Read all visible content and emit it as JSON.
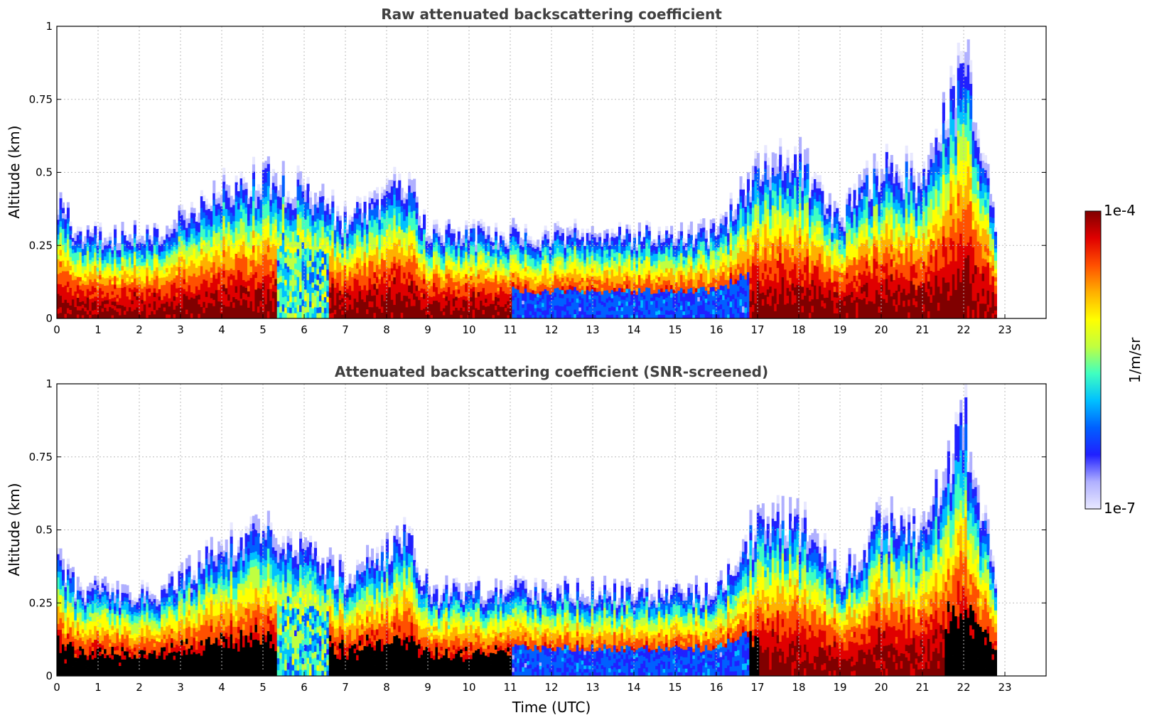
{
  "chart_data": [
    {
      "type": "heatmap",
      "title": "Raw attenuated backscattering coefficient",
      "xlabel": "",
      "ylabel": "Altitude (km)",
      "xlim": [
        0,
        24
      ],
      "ylim": [
        0,
        1
      ],
      "xticks": [
        "0",
        "1",
        "2",
        "3",
        "4",
        "5",
        "6",
        "7",
        "8",
        "9",
        "10",
        "11",
        "12",
        "13",
        "14",
        "15",
        "16",
        "17",
        "18",
        "19",
        "20",
        "21",
        "22",
        "23"
      ],
      "yticks": [
        "0",
        "0.25",
        "0.5",
        "0.75",
        "1"
      ],
      "ytick_values": [
        0,
        0.25,
        0.5,
        0.75,
        1
      ],
      "grid": true,
      "data_end_hour": 22.8,
      "layer_top_km": [
        [
          0,
          0.4
        ],
        [
          0.5,
          0.3
        ],
        [
          2.5,
          0.3
        ],
        [
          3,
          0.35
        ],
        [
          4,
          0.45
        ],
        [
          5,
          0.5
        ],
        [
          6,
          0.45
        ],
        [
          7,
          0.35
        ],
        [
          8.5,
          0.5
        ],
        [
          9,
          0.3
        ],
        [
          13,
          0.3
        ],
        [
          16,
          0.3
        ],
        [
          17,
          0.55
        ],
        [
          18,
          0.55
        ],
        [
          19,
          0.35
        ],
        [
          20,
          0.55
        ],
        [
          21,
          0.5
        ],
        [
          22,
          0.9
        ],
        [
          22.8,
          0.3
        ]
      ]
    },
    {
      "type": "heatmap",
      "title": "Attenuated backscattering coefficient (SNR-screened)",
      "xlabel": "Time (UTC)",
      "ylabel": "Altitude (km)",
      "xlim": [
        0,
        24
      ],
      "ylim": [
        0,
        1
      ],
      "xticks": [
        "0",
        "1",
        "2",
        "3",
        "4",
        "5",
        "6",
        "7",
        "8",
        "9",
        "10",
        "11",
        "12",
        "13",
        "14",
        "15",
        "16",
        "17",
        "18",
        "19",
        "20",
        "21",
        "22",
        "23"
      ],
      "yticks": [
        "0",
        "0.25",
        "0.5",
        "0.75",
        "1"
      ],
      "ytick_values": [
        0,
        0.25,
        0.5,
        0.75,
        1
      ],
      "grid": true,
      "data_end_hour": 22.8,
      "layer_top_km": [
        [
          0,
          0.4
        ],
        [
          0.5,
          0.3
        ],
        [
          2.5,
          0.3
        ],
        [
          3,
          0.35
        ],
        [
          4,
          0.45
        ],
        [
          5,
          0.5
        ],
        [
          6,
          0.45
        ],
        [
          7,
          0.35
        ],
        [
          8.5,
          0.5
        ],
        [
          9,
          0.3
        ],
        [
          13,
          0.3
        ],
        [
          16,
          0.3
        ],
        [
          17,
          0.55
        ],
        [
          18,
          0.55
        ],
        [
          19,
          0.35
        ],
        [
          20,
          0.55
        ],
        [
          21,
          0.5
        ],
        [
          22,
          0.9
        ],
        [
          22.8,
          0.3
        ]
      ]
    }
  ],
  "colorbar": {
    "label": "1/m/sr",
    "max_label": "1e-4",
    "min_label": "1e-7",
    "colors": [
      "#e8e8ff",
      "#b0b0ff",
      "#2020ff",
      "#0060ff",
      "#00c0ff",
      "#40ffc0",
      "#c0ff40",
      "#ffff00",
      "#ffb000",
      "#ff5000",
      "#e00000",
      "#800000"
    ]
  }
}
